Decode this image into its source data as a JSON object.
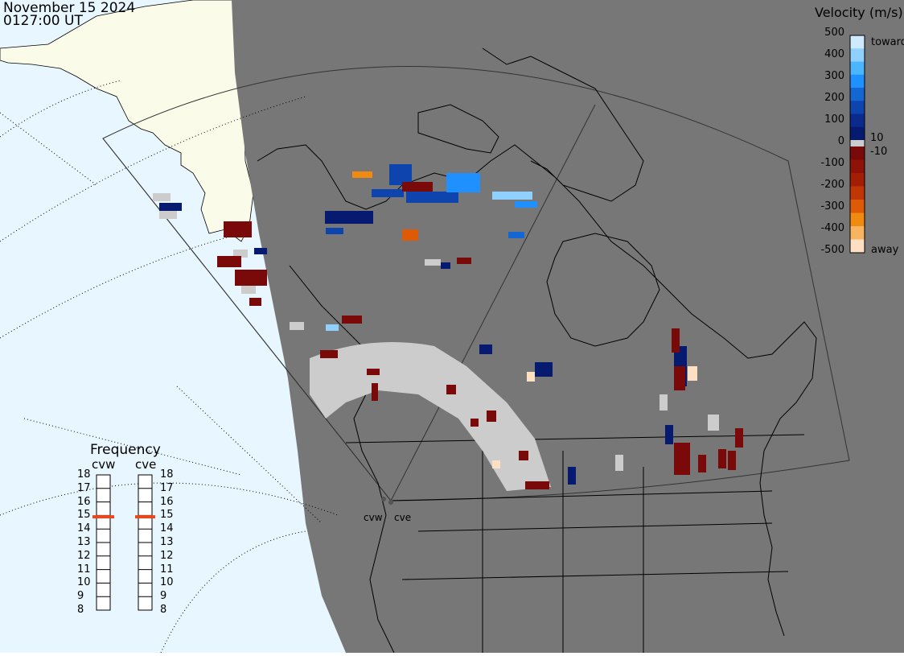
{
  "header": {
    "date": "November 15 2024",
    "time": "0127:00 UT"
  },
  "frequency_panel": {
    "title": "Frequency",
    "radars": [
      {
        "name": "cvw",
        "frequency_mhz": 14.9
      },
      {
        "name": "cve",
        "frequency_mhz": 14.9
      }
    ],
    "ticks": [
      "18",
      "17",
      "16",
      "15",
      "14",
      "13",
      "12",
      "11",
      "10",
      "9",
      "8"
    ],
    "indicator_color": "#e8481c"
  },
  "velocity_scale": {
    "title": "Velocity (m/s)",
    "toward_label": "toward",
    "away_label": "away",
    "ticks": [
      "500",
      "400",
      "300",
      "200",
      "100",
      "10",
      "0",
      "-10",
      "-100",
      "-200",
      "-300",
      "-400",
      "-500"
    ],
    "colors_toward": [
      "#cfeaff",
      "#8fd0ff",
      "#4cb5ff",
      "#1e90ff",
      "#1466d2",
      "#0d44ad",
      "#0a2a8e",
      "#061a70"
    ],
    "colors_away": [
      "#7a0a0a",
      "#8e1208",
      "#a41e06",
      "#c13606",
      "#de5a06",
      "#f08a10",
      "#f8b460",
      "#fde0c2"
    ],
    "ground_scatter_color": "#cccccc"
  },
  "map": {
    "site_labels": [
      "cvw",
      "cve"
    ],
    "night_color": "#777777",
    "day_ocean_color": "#e8f6ff",
    "land_day_color": "#fbfbe9"
  }
}
